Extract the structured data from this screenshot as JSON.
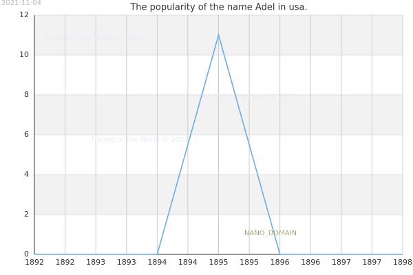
{
  "chart_data": {
    "type": "line",
    "title": "The popularity of the name Adel in usa.",
    "date": "2021-11-04",
    "watermarks": [
      "Names of the World © 2021",
      "Names of the World © 2021",
      "Names of the World © 2021"
    ],
    "annotation": "NANO_DOMAIN",
    "x": [
      1892,
      1893,
      1894,
      1895,
      1896,
      1897,
      1898
    ],
    "series": [
      {
        "name": "Adel",
        "color": "#6aaee8",
        "values": [
          0,
          0,
          0,
          11,
          0,
          0,
          0
        ]
      }
    ],
    "xlim": [
      1892,
      1898
    ],
    "xticks": [
      1892,
      {
        "value": 1892.5,
        "label": "1892"
      },
      1893,
      {
        "value": 1893.5,
        "label": "1893"
      },
      1894,
      {
        "value": 1894.5,
        "label": "1894"
      },
      1895,
      {
        "value": 1895.5,
        "label": "1895"
      },
      1896,
      {
        "value": 1896.5,
        "label": "1896"
      },
      1897,
      {
        "value": 1897.5,
        "label": "1897"
      },
      1898
    ],
    "ylim": [
      0,
      12
    ],
    "yticks": [
      0,
      2,
      4,
      6,
      8,
      10,
      12
    ],
    "grid": true
  }
}
